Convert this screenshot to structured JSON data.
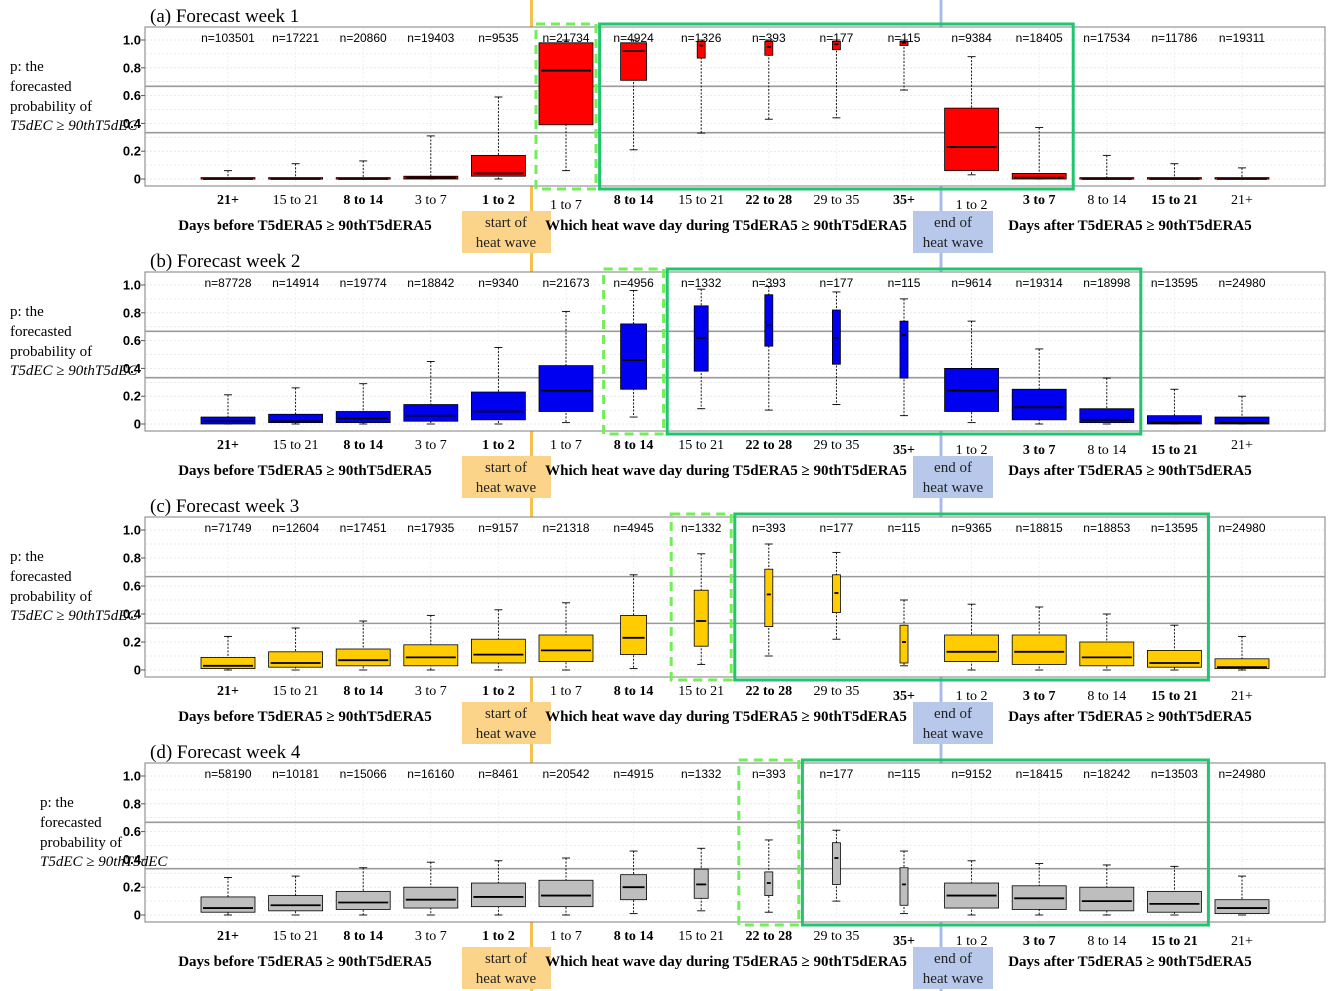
{
  "figure": {
    "y_label_lines": [
      "p: the",
      "forecasted",
      "probability of",
      "T5dEC ≥ 90thT5dEC"
    ],
    "group_labels": {
      "before": "Days before T5dERA5 ≥ 90thT5dERA5",
      "during": "Which heat wave day during T5dERA5 ≥ 90thT5dERA5",
      "after": "Days after T5dERA5 ≥ 90thT5dERA5"
    },
    "start_marker": [
      "start of",
      "heat wave"
    ],
    "end_marker": [
      "end of",
      "heat wave"
    ],
    "colors": {
      "start_line": "#F5C251",
      "end_line": "#A9BCE8",
      "start_bg": "#FBD48A",
      "end_bg": "#B7C8EA",
      "highlight_solid": "#21C56E",
      "highlight_dashed": "#72EE59",
      "threshold_line": "#9a9a9a"
    }
  },
  "chart_data": [
    {
      "type": "boxplot",
      "title": "(a) Forecast week 1",
      "color": "#FF0000",
      "ylim": [
        0,
        1
      ],
      "yticks": [
        "0",
        "0.2",
        "0.4",
        "0.6",
        "0.8",
        "1.0"
      ],
      "thresholds": [
        0.333,
        0.667
      ],
      "categories": [
        "21+",
        "15 to 21",
        "8 to 14",
        "3 to 7",
        "1 to 2",
        "1 to 7",
        "8 to 14",
        "15 to 21",
        "22 to 28",
        "29 to 35",
        "35+",
        "1 to 2",
        "3 to 7",
        "8 to 14",
        "15 to 21",
        "21+"
      ],
      "bold_categories": [
        0,
        2,
        4,
        6,
        8,
        10,
        12,
        14
      ],
      "low_categories": [
        5,
        11
      ],
      "n": [
        "n=103501",
        "n=17221",
        "n=20860",
        "n=19403",
        "n=9535",
        "n=21734",
        "n=4924",
        "n=1326",
        "n=393",
        "n=177",
        "n=115",
        "n=9384",
        "n=18405",
        "n=17534",
        "n=11786",
        "n=19311"
      ],
      "boxes": [
        {
          "min": 0.0,
          "q1": 0.0,
          "median": 0.0,
          "q3": 0.01,
          "max": 0.06
        },
        {
          "min": 0.0,
          "q1": 0.0,
          "median": 0.0,
          "q3": 0.01,
          "max": 0.11
        },
        {
          "min": 0.0,
          "q1": 0.0,
          "median": 0.0,
          "q3": 0.01,
          "max": 0.13
        },
        {
          "min": 0.0,
          "q1": 0.0,
          "median": 0.01,
          "q3": 0.02,
          "max": 0.31
        },
        {
          "min": 0.0,
          "q1": 0.02,
          "median": 0.04,
          "q3": 0.17,
          "max": 0.59
        },
        {
          "min": 0.06,
          "q1": 0.39,
          "median": 0.78,
          "q3": 0.98,
          "max": 1.0
        },
        {
          "min": 0.21,
          "q1": 0.71,
          "median": 0.92,
          "q3": 0.98,
          "max": 1.0
        },
        {
          "min": 0.33,
          "q1": 0.87,
          "median": 0.96,
          "q3": 0.99,
          "max": 1.0
        },
        {
          "min": 0.43,
          "q1": 0.89,
          "median": 0.95,
          "q3": 0.99,
          "max": 1.0
        },
        {
          "min": 0.44,
          "q1": 0.93,
          "median": 0.97,
          "q3": 0.99,
          "max": 1.0
        },
        {
          "min": 0.64,
          "q1": 0.96,
          "median": 0.98,
          "q3": 0.99,
          "max": 1.0
        },
        {
          "min": 0.03,
          "q1": 0.06,
          "median": 0.23,
          "q3": 0.51,
          "max": 0.88
        },
        {
          "min": 0.0,
          "q1": 0.0,
          "median": 0.01,
          "q3": 0.04,
          "max": 0.37
        },
        {
          "min": 0.0,
          "q1": 0.0,
          "median": 0.0,
          "q3": 0.01,
          "max": 0.17
        },
        {
          "min": 0.0,
          "q1": 0.0,
          "median": 0.0,
          "q3": 0.01,
          "max": 0.11
        },
        {
          "min": 0.0,
          "q1": 0.0,
          "median": 0.0,
          "q3": 0.01,
          "max": 0.08
        }
      ],
      "dashed_highlight": [
        5,
        5
      ],
      "solid_highlight": [
        6,
        12
      ]
    },
    {
      "type": "boxplot",
      "title": "(b) Forecast week 2",
      "color": "#0000F0",
      "ylim": [
        0,
        1
      ],
      "yticks": [
        "0",
        "0.2",
        "0.4",
        "0.6",
        "0.8",
        "1.0"
      ],
      "thresholds": [
        0.333,
        0.667
      ],
      "categories": [
        "21+",
        "15 to 21",
        "8 to 14",
        "3 to 7",
        "1 to 2",
        "1 to 7",
        "8 to 14",
        "15 to 21",
        "22 to 28",
        "29 to 35",
        "35+",
        "1 to 2",
        "3 to 7",
        "8 to 14",
        "15 to 21",
        "21+"
      ],
      "bold_categories": [
        0,
        2,
        4,
        6,
        8,
        10,
        12,
        14
      ],
      "low_categories": [
        10,
        11,
        12,
        13,
        14
      ],
      "n": [
        "n=87728",
        "n=14914",
        "n=19774",
        "n=18842",
        "n=9340",
        "n=21673",
        "n=4956",
        "n=1332",
        "n=393",
        "n=177",
        "n=115",
        "n=9614",
        "n=19314",
        "n=18998",
        "n=13595",
        "n=24980"
      ],
      "boxes": [
        {
          "min": 0.0,
          "q1": 0.0,
          "median": 0.02,
          "q3": 0.05,
          "max": 0.21
        },
        {
          "min": 0.0,
          "q1": 0.01,
          "median": 0.02,
          "q3": 0.07,
          "max": 0.26
        },
        {
          "min": 0.0,
          "q1": 0.01,
          "median": 0.04,
          "q3": 0.09,
          "max": 0.29
        },
        {
          "min": 0.0,
          "q1": 0.02,
          "median": 0.06,
          "q3": 0.14,
          "max": 0.45
        },
        {
          "min": 0.0,
          "q1": 0.03,
          "median": 0.09,
          "q3": 0.23,
          "max": 0.55
        },
        {
          "min": 0.01,
          "q1": 0.09,
          "median": 0.24,
          "q3": 0.42,
          "max": 0.81
        },
        {
          "min": 0.05,
          "q1": 0.25,
          "median": 0.46,
          "q3": 0.72,
          "max": 0.96
        },
        {
          "min": 0.11,
          "q1": 0.38,
          "median": 0.62,
          "q3": 0.85,
          "max": 0.97
        },
        {
          "min": 0.1,
          "q1": 0.56,
          "median": 0.71,
          "q3": 0.93,
          "max": 0.99
        },
        {
          "min": 0.14,
          "q1": 0.43,
          "median": 0.62,
          "q3": 0.82,
          "max": 0.95
        },
        {
          "min": 0.06,
          "q1": 0.33,
          "median": 0.64,
          "q3": 0.74,
          "max": 0.9
        },
        {
          "min": 0.01,
          "q1": 0.09,
          "median": 0.24,
          "q3": 0.4,
          "max": 0.74
        },
        {
          "min": 0.0,
          "q1": 0.03,
          "median": 0.12,
          "q3": 0.25,
          "max": 0.54
        },
        {
          "min": 0.0,
          "q1": 0.01,
          "median": 0.03,
          "q3": 0.11,
          "max": 0.33
        },
        {
          "min": 0.0,
          "q1": 0.0,
          "median": 0.01,
          "q3": 0.06,
          "max": 0.25
        },
        {
          "min": 0.0,
          "q1": 0.0,
          "median": 0.01,
          "q3": 0.05,
          "max": 0.2
        }
      ],
      "dashed_highlight": [
        6,
        6
      ],
      "solid_highlight": [
        7,
        13
      ]
    },
    {
      "type": "boxplot",
      "title": "(c) Forecast week 3",
      "color": "#FFCC00",
      "ylim": [
        0,
        1
      ],
      "yticks": [
        "0",
        "0.2",
        "0.4",
        "0.6",
        "0.8",
        "1.0"
      ],
      "thresholds": [
        0.333,
        0.667
      ],
      "categories": [
        "21+",
        "15 to 21",
        "8 to 14",
        "3 to 7",
        "1 to 2",
        "1 to 7",
        "8 to 14",
        "15 to 21",
        "22 to 28",
        "29 to 35",
        "35+",
        "1 to 2",
        "3 to 7",
        "8 to 14",
        "15 to 21",
        "21+"
      ],
      "bold_categories": [
        0,
        2,
        4,
        6,
        8,
        10,
        12,
        14
      ],
      "low_categories": [
        10,
        11,
        12,
        13,
        14,
        15
      ],
      "n": [
        "n=71749",
        "n=12604",
        "n=17451",
        "n=17935",
        "n=9157",
        "n=21318",
        "n=4945",
        "n=1332",
        "n=393",
        "n=177",
        "n=115",
        "n=9365",
        "n=18815",
        "n=18853",
        "n=13595",
        "n=24980"
      ],
      "boxes": [
        {
          "min": 0.0,
          "q1": 0.01,
          "median": 0.03,
          "q3": 0.09,
          "max": 0.24
        },
        {
          "min": 0.0,
          "q1": 0.02,
          "median": 0.05,
          "q3": 0.13,
          "max": 0.3
        },
        {
          "min": 0.0,
          "q1": 0.03,
          "median": 0.07,
          "q3": 0.15,
          "max": 0.35
        },
        {
          "min": 0.0,
          "q1": 0.03,
          "median": 0.09,
          "q3": 0.18,
          "max": 0.39
        },
        {
          "min": 0.0,
          "q1": 0.05,
          "median": 0.11,
          "q3": 0.22,
          "max": 0.43
        },
        {
          "min": 0.0,
          "q1": 0.06,
          "median": 0.14,
          "q3": 0.25,
          "max": 0.48
        },
        {
          "min": 0.01,
          "q1": 0.11,
          "median": 0.23,
          "q3": 0.39,
          "max": 0.68
        },
        {
          "min": 0.04,
          "q1": 0.17,
          "median": 0.35,
          "q3": 0.57,
          "max": 0.83
        },
        {
          "min": 0.1,
          "q1": 0.31,
          "median": 0.54,
          "q3": 0.72,
          "max": 0.9
        },
        {
          "min": 0.22,
          "q1": 0.41,
          "median": 0.55,
          "q3": 0.68,
          "max": 0.84
        },
        {
          "min": 0.03,
          "q1": 0.05,
          "median": 0.2,
          "q3": 0.32,
          "max": 0.5
        },
        {
          "min": 0.0,
          "q1": 0.06,
          "median": 0.13,
          "q3": 0.25,
          "max": 0.47
        },
        {
          "min": 0.0,
          "q1": 0.04,
          "median": 0.13,
          "q3": 0.25,
          "max": 0.45
        },
        {
          "min": 0.0,
          "q1": 0.03,
          "median": 0.09,
          "q3": 0.2,
          "max": 0.4
        },
        {
          "min": 0.0,
          "q1": 0.02,
          "median": 0.05,
          "q3": 0.14,
          "max": 0.32
        },
        {
          "min": 0.0,
          "q1": 0.01,
          "median": 0.02,
          "q3": 0.08,
          "max": 0.24
        }
      ],
      "dashed_highlight": [
        7,
        7
      ],
      "solid_highlight": [
        8,
        14
      ]
    },
    {
      "type": "boxplot",
      "title": "(d) Forecast week 4",
      "color": "#BEBEBE",
      "ylim": [
        0,
        1
      ],
      "yticks": [
        "0",
        "0.2",
        "0.4",
        "0.6",
        "0.8",
        "1.0"
      ],
      "thresholds": [
        0.333,
        0.667
      ],
      "categories": [
        "21+",
        "15 to 21",
        "8 to 14",
        "3 to 7",
        "1 to 2",
        "1 to 7",
        "8 to 14",
        "15 to 21",
        "22 to 28",
        "29 to 35",
        "35+",
        "1 to 2",
        "3 to 7",
        "8 to 14",
        "15 to 21",
        "21+"
      ],
      "bold_categories": [
        0,
        2,
        4,
        6,
        8,
        10,
        12,
        14
      ],
      "low_categories": [
        10,
        11,
        12,
        13,
        14,
        15
      ],
      "n": [
        "n=58190",
        "n=10181",
        "n=15066",
        "n=16160",
        "n=8461",
        "n=20542",
        "n=4915",
        "n=1332",
        "n=393",
        "n=177",
        "n=115",
        "n=9152",
        "n=18415",
        "n=18242",
        "n=13503",
        "n=24980"
      ],
      "boxes": [
        {
          "min": 0.0,
          "q1": 0.02,
          "median": 0.05,
          "q3": 0.13,
          "max": 0.27
        },
        {
          "min": 0.0,
          "q1": 0.03,
          "median": 0.07,
          "q3": 0.14,
          "max": 0.28
        },
        {
          "min": 0.0,
          "q1": 0.04,
          "median": 0.09,
          "q3": 0.17,
          "max": 0.34
        },
        {
          "min": 0.0,
          "q1": 0.05,
          "median": 0.11,
          "q3": 0.2,
          "max": 0.38
        },
        {
          "min": 0.0,
          "q1": 0.06,
          "median": 0.13,
          "q3": 0.23,
          "max": 0.39
        },
        {
          "min": 0.0,
          "q1": 0.06,
          "median": 0.14,
          "q3": 0.25,
          "max": 0.41
        },
        {
          "min": 0.01,
          "q1": 0.11,
          "median": 0.2,
          "q3": 0.29,
          "max": 0.46
        },
        {
          "min": 0.03,
          "q1": 0.12,
          "median": 0.22,
          "q3": 0.33,
          "max": 0.48
        },
        {
          "min": 0.02,
          "q1": 0.14,
          "median": 0.23,
          "q3": 0.31,
          "max": 0.54
        },
        {
          "min": 0.1,
          "q1": 0.22,
          "median": 0.41,
          "q3": 0.52,
          "max": 0.61
        },
        {
          "min": 0.01,
          "q1": 0.07,
          "median": 0.22,
          "q3": 0.34,
          "max": 0.46
        },
        {
          "min": 0.0,
          "q1": 0.05,
          "median": 0.14,
          "q3": 0.23,
          "max": 0.39
        },
        {
          "min": 0.0,
          "q1": 0.04,
          "median": 0.12,
          "q3": 0.21,
          "max": 0.37
        },
        {
          "min": 0.0,
          "q1": 0.03,
          "median": 0.1,
          "q3": 0.2,
          "max": 0.36
        },
        {
          "min": 0.0,
          "q1": 0.02,
          "median": 0.08,
          "q3": 0.17,
          "max": 0.35
        },
        {
          "min": 0.0,
          "q1": 0.01,
          "median": 0.05,
          "q3": 0.11,
          "max": 0.28
        }
      ],
      "dashed_highlight": [
        8,
        8
      ],
      "solid_highlight": [
        9,
        14
      ]
    }
  ]
}
